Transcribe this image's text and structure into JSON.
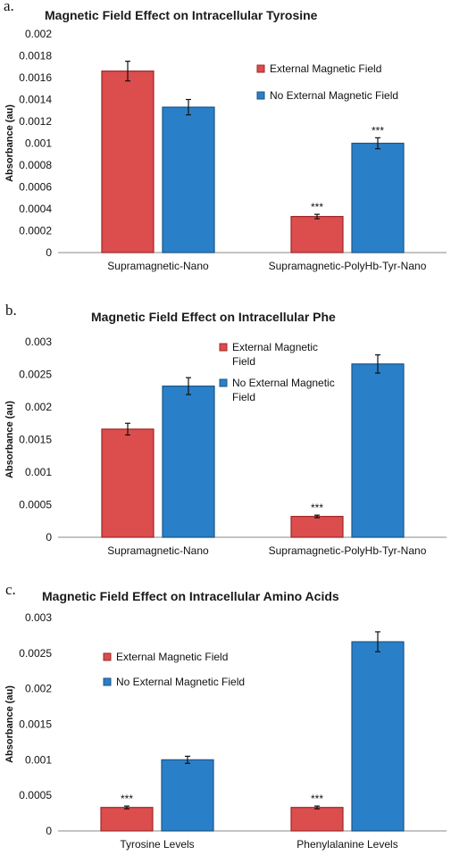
{
  "colors": {
    "series_1": "#dc4d4d",
    "series_2": "#2a80c8",
    "bar_edge_1": "#9e2727",
    "bar_edge_2": "#1b5486",
    "axis": "#8a8a8a"
  },
  "chart_data": [
    {
      "panel_label": "a.",
      "type": "bar",
      "title": "Magnetic Field Effect on Intracellular Tyrosine",
      "ylabel": "Absorbance (au)",
      "xlabel": "",
      "ylim": [
        0,
        0.002
      ],
      "yticks": [
        "0",
        "0.0002",
        "0.0004",
        "0.0006",
        "0.0008",
        "0.001",
        "0.0012",
        "0.0014",
        "0.0016",
        "0.0018",
        "0.002"
      ],
      "ytick_values": [
        0,
        0.0002,
        0.0004,
        0.0006,
        0.0008,
        0.001,
        0.0012,
        0.0014,
        0.0016,
        0.0018,
        0.002
      ],
      "categories": [
        "Supramagnetic-Nano",
        "Supramagnetic-PolyHb-Tyr-Nano"
      ],
      "series": [
        {
          "name": "External Magnetic Field",
          "values": [
            0.00166,
            0.00033
          ],
          "errors": [
            9e-05,
            2e-05
          ],
          "significance": [
            "",
            "***"
          ]
        },
        {
          "name": "No External Magnetic Field",
          "values": [
            0.00133,
            0.001
          ],
          "errors": [
            7e-05,
            5e-05
          ],
          "significance": [
            "",
            "***"
          ]
        }
      ],
      "legend": "top-right",
      "grid": false
    },
    {
      "panel_label": "b.",
      "type": "bar",
      "title": "Magnetic Field Effect on Intracellular Phe",
      "ylabel": "Absorbance (au)",
      "xlabel": "",
      "ylim": [
        0,
        0.003
      ],
      "yticks": [
        "0",
        "0.0005",
        "0.001",
        "0.0015",
        "0.002",
        "0.0025",
        "0.003"
      ],
      "ytick_values": [
        0,
        0.0005,
        0.001,
        0.0015,
        0.002,
        0.0025,
        0.003
      ],
      "categories": [
        "Supramagnetic-Nano",
        "Supramagnetic-PolyHb-Tyr-Nano"
      ],
      "series": [
        {
          "name": "External Magnetic Field",
          "values": [
            0.00166,
            0.00032
          ],
          "errors": [
            9e-05,
            2e-05
          ],
          "significance": [
            "",
            "***"
          ]
        },
        {
          "name": "No External Magnetic Field",
          "values": [
            0.00232,
            0.00266
          ],
          "errors": [
            0.00013,
            0.00014
          ],
          "significance": [
            "",
            ""
          ]
        }
      ],
      "legend": "top-center",
      "grid": false
    },
    {
      "panel_label": "c.",
      "type": "bar",
      "title": "Magnetic Field Effect on Intracellular Amino Acids",
      "ylabel": "Absorbance (au)",
      "xlabel": "",
      "ylim": [
        0,
        0.003
      ],
      "yticks": [
        "0",
        "0.0005",
        "0.001",
        "0.0015",
        "0.002",
        "0.0025",
        "0.003"
      ],
      "ytick_values": [
        0,
        0.0005,
        0.001,
        0.0015,
        0.002,
        0.0025,
        0.003
      ],
      "categories": [
        "Tyrosine Levels",
        "Phenylalanine Levels"
      ],
      "series": [
        {
          "name": "External Magnetic Field",
          "values": [
            0.00033,
            0.00033
          ],
          "errors": [
            2e-05,
            2e-05
          ],
          "significance": [
            "***",
            "***"
          ]
        },
        {
          "name": "No External Magnetic Field",
          "values": [
            0.001,
            0.00266
          ],
          "errors": [
            5e-05,
            0.00014
          ],
          "significance": [
            "",
            ""
          ]
        }
      ],
      "legend": "top-left",
      "grid": false
    }
  ]
}
